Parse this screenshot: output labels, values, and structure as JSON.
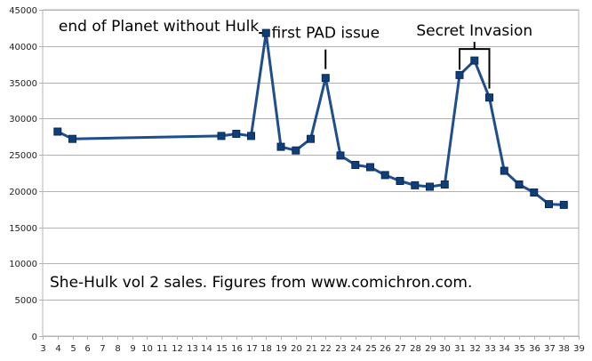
{
  "chart_data": {
    "type": "line",
    "title": "",
    "xlabel": "",
    "ylabel": "",
    "xlim": [
      3,
      39
    ],
    "ylim": [
      0,
      45000
    ],
    "x_ticks": [
      3,
      4,
      5,
      6,
      7,
      8,
      9,
      10,
      11,
      12,
      13,
      14,
      15,
      16,
      17,
      18,
      19,
      20,
      21,
      22,
      23,
      24,
      25,
      26,
      27,
      28,
      29,
      30,
      31,
      32,
      33,
      34,
      35,
      36,
      37,
      38,
      39
    ],
    "y_ticks": [
      0,
      5000,
      10000,
      15000,
      20000,
      25000,
      30000,
      35000,
      40000,
      45000
    ],
    "grid": "horizontal",
    "legend": "none",
    "series": [
      {
        "color": "#1f4e8c",
        "marker_color": "#0f3f78",
        "points": [
          [
            4,
            28200
          ],
          [
            5,
            27200
          ],
          [
            15,
            27600
          ],
          [
            16,
            27900
          ],
          [
            17,
            27600
          ],
          [
            18,
            41800
          ],
          [
            19,
            26100
          ],
          [
            20,
            25600
          ],
          [
            21,
            27200
          ],
          [
            22,
            35600
          ],
          [
            23,
            24900
          ],
          [
            24,
            23600
          ],
          [
            25,
            23300
          ],
          [
            26,
            22200
          ],
          [
            27,
            21400
          ],
          [
            28,
            20800
          ],
          [
            29,
            20600
          ],
          [
            30,
            20900
          ],
          [
            31,
            36000
          ],
          [
            32,
            38000
          ],
          [
            33,
            32900
          ],
          [
            34,
            22800
          ],
          [
            35,
            20900
          ],
          [
            36,
            19800
          ],
          [
            37,
            18200
          ],
          [
            38,
            18100
          ]
        ]
      }
    ],
    "annotations": [
      {
        "text": "end of Planet without Hulk",
        "x": 18,
        "y": 41800
      },
      {
        "text": "first PAD issue",
        "x": 22,
        "y": 35600
      },
      {
        "text": "Secret Invasion",
        "x": [
          31,
          33
        ],
        "y": 38000
      }
    ],
    "caption": "She-Hulk vol 2 sales. Figures from www.comichron.com."
  }
}
